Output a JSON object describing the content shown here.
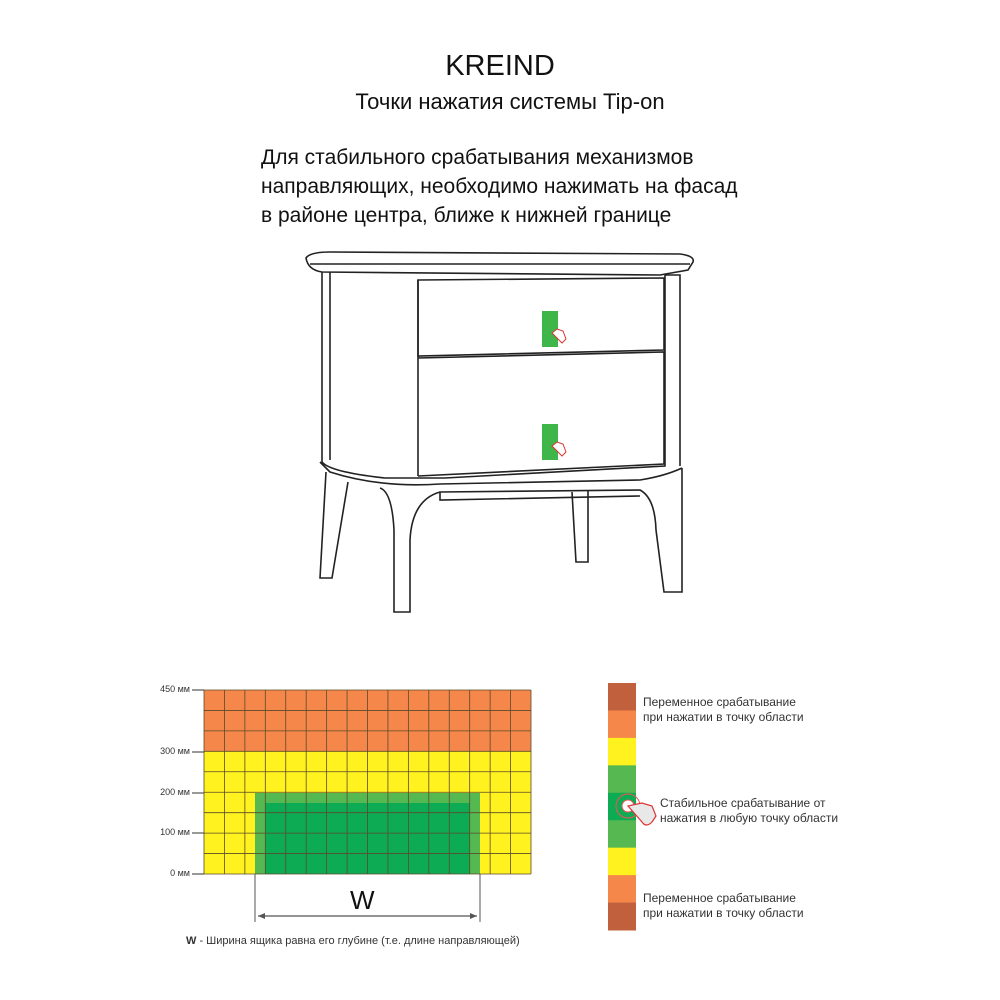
{
  "header": {
    "brand": "KREIND",
    "subtitle": "Точки нажатия системы Tip-on"
  },
  "intro": {
    "lines": [
      "Для стабильного срабатывания механизмов",
      "направляющих, необходимо нажимать на фасад",
      "в районе центра, ближе к нижней границе"
    ]
  },
  "zone_chart": {
    "ticks": [
      "450 мм",
      "300 мм",
      "200 мм",
      "100 мм",
      "0 мм"
    ],
    "width_label": "W",
    "note_bold": "W",
    "note_text": " - Ширина ящика равна его глубине (т.е. длине направляющей)",
    "colors": {
      "orange": "#f5874a",
      "yellow": "#fff21e",
      "green_light": "#55b851",
      "green_dark": "#0eab55",
      "brown": "#c0603c"
    }
  },
  "legend": {
    "variable_top": [
      "Переменное срабатывание",
      "при нажатии в точку области"
    ],
    "stable": [
      "Стабильное срабатывание от",
      "нажатия в любую точку области"
    ],
    "variable_bottom": [
      "Переменное срабатывание",
      "при нажатии в точку области"
    ]
  }
}
